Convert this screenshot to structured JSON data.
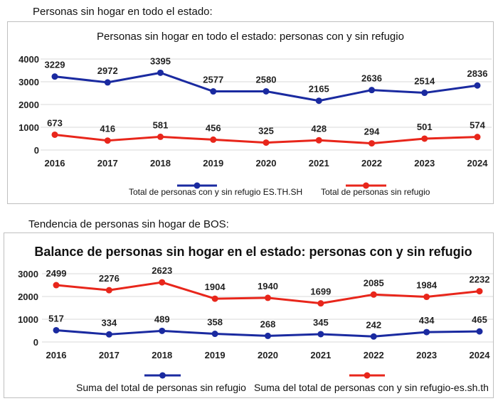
{
  "charts": [
    {
      "heading": "Personas sin hogar en todo el estado:",
      "chart_data": {
        "type": "line",
        "title": "Personas sin hogar en todo el estado: personas con y sin refugio",
        "categories": [
          "2016",
          "2017",
          "2018",
          "2019",
          "2020",
          "2021",
          "2022",
          "2023",
          "2024"
        ],
        "ylim": [
          0,
          4000
        ],
        "yticks": [
          0,
          1000,
          2000,
          3000,
          4000
        ],
        "ytick_labels": [
          "0",
          "1000",
          "2000",
          "3000",
          "4000"
        ],
        "grid": true,
        "legend_position": "bottom",
        "series": [
          {
            "name": "Total de personas con y sin refugio ES.TH.SH",
            "color": "#1a2aa0",
            "values": [
              3229,
              2972,
              3395,
              2577,
              2580,
              2165,
              2636,
              2514,
              2836
            ]
          },
          {
            "name": "Total de personas sin refugio",
            "color": "#e8261b",
            "values": [
              673,
              416,
              581,
              456,
              325,
              428,
              294,
              501,
              574
            ]
          }
        ]
      }
    },
    {
      "heading": "Tendencia de personas sin hogar de BOS:",
      "chart_data": {
        "type": "line",
        "title": "Balance de personas sin hogar en el estado: personas con y sin refugio",
        "categories": [
          "2016",
          "2017",
          "2018",
          "2019",
          "2020",
          "2021",
          "2022",
          "2023",
          "2024"
        ],
        "ylim": [
          0,
          3000
        ],
        "yticks": [
          0,
          1000,
          2000,
          3000
        ],
        "ytick_labels": [
          "0",
          "1000",
          "2000",
          "3000"
        ],
        "grid": true,
        "legend_position": "bottom",
        "series": [
          {
            "name": "Suma del total de personas sin refugio",
            "color": "#1a2aa0",
            "values": [
              517,
              334,
              489,
              358,
              268,
              345,
              242,
              434,
              465
            ]
          },
          {
            "name": "Suma del total de personas con y sin refugio-es.sh.th",
            "color": "#e8261b",
            "values": [
              2499,
              2276,
              2623,
              1904,
              1940,
              1699,
              2085,
              1984,
              2232
            ]
          }
        ]
      }
    }
  ]
}
